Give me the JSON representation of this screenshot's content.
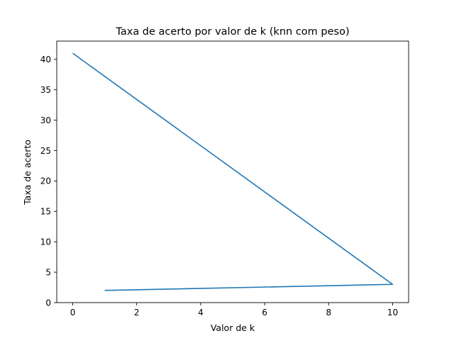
{
  "chart_data": {
    "type": "line",
    "title": "Taxa de acerto por valor de k (knn com peso)",
    "xlabel": "Valor de k",
    "ylabel": "Taxa de acerto",
    "xlim": [
      -0.5,
      10.5
    ],
    "ylim": [
      0,
      43.0
    ],
    "xticks": [
      0,
      2,
      4,
      6,
      8,
      10
    ],
    "yticks": [
      0,
      5,
      10,
      15,
      20,
      25,
      30,
      35,
      40
    ],
    "grid": false,
    "line_color": "#1f77b4",
    "series": [
      {
        "points": [
          {
            "x": 1,
            "y": 2
          },
          {
            "x": 10,
            "y": 3
          },
          {
            "x": 0,
            "y": 41
          }
        ]
      }
    ]
  }
}
